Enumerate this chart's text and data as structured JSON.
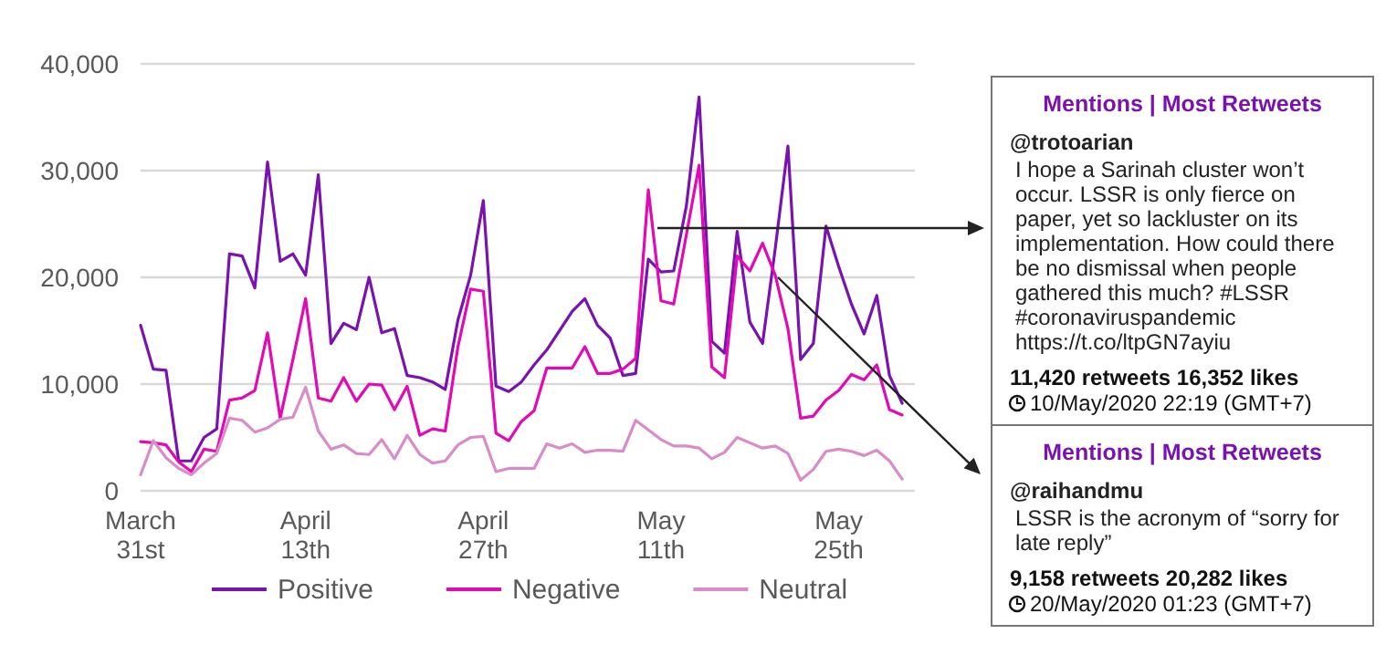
{
  "chart_data": {
    "type": "line",
    "x": [
      "2020-03-31",
      "2020-04-01",
      "2020-04-02",
      "2020-04-03",
      "2020-04-04",
      "2020-04-05",
      "2020-04-06",
      "2020-04-07",
      "2020-04-08",
      "2020-04-09",
      "2020-04-10",
      "2020-04-11",
      "2020-04-12",
      "2020-04-13",
      "2020-04-14",
      "2020-04-15",
      "2020-04-16",
      "2020-04-17",
      "2020-04-18",
      "2020-04-19",
      "2020-04-20",
      "2020-04-21",
      "2020-04-22",
      "2020-04-23",
      "2020-04-24",
      "2020-04-25",
      "2020-04-26",
      "2020-04-27",
      "2020-04-28",
      "2020-04-29",
      "2020-04-30",
      "2020-05-01",
      "2020-05-02",
      "2020-05-03",
      "2020-05-04",
      "2020-05-05",
      "2020-05-06",
      "2020-05-07",
      "2020-05-08",
      "2020-05-09",
      "2020-05-10",
      "2020-05-11",
      "2020-05-12",
      "2020-05-13",
      "2020-05-14",
      "2020-05-15",
      "2020-05-16",
      "2020-05-17",
      "2020-05-18",
      "2020-05-19",
      "2020-05-20",
      "2020-05-21",
      "2020-05-22",
      "2020-05-23",
      "2020-05-24",
      "2020-05-25",
      "2020-05-26",
      "2020-05-27",
      "2020-05-28",
      "2020-05-29",
      "2020-05-30"
    ],
    "series": [
      {
        "name": "Positive",
        "color": "#7a12b0",
        "values": [
          15500,
          11400,
          11300,
          2800,
          2800,
          5000,
          5800,
          22200,
          22000,
          19000,
          30800,
          21500,
          22200,
          20200,
          29600,
          13800,
          15700,
          15100,
          20000,
          14800,
          15200,
          10800,
          10600,
          10200,
          9500,
          16000,
          20200,
          27200,
          9800,
          9300,
          10200,
          11800,
          13200,
          15000,
          16800,
          18000,
          15500,
          14300,
          10800,
          11000,
          21700,
          20500,
          20600,
          26700,
          36900,
          14000,
          12900,
          24300,
          15800,
          13800,
          22700,
          32300,
          12300,
          13800,
          24800,
          21000,
          17500,
          14700,
          18300,
          10800,
          8200
        ]
      },
      {
        "name": "Negative",
        "color": "#e10ab4",
        "values": [
          4600,
          4500,
          4300,
          2700,
          1800,
          3900,
          3700,
          8500,
          8700,
          9400,
          14800,
          6800,
          12300,
          18000,
          8700,
          8400,
          10600,
          8400,
          10000,
          9900,
          7600,
          9800,
          5200,
          5800,
          5600,
          13500,
          18900,
          18700,
          5400,
          4700,
          6500,
          7500,
          11500,
          11500,
          11500,
          13500,
          11000,
          11000,
          11400,
          12400,
          28200,
          17800,
          17500,
          24000,
          30500,
          11600,
          10600,
          22000,
          20600,
          23200,
          20200,
          15200,
          6800,
          7000,
          8500,
          9400,
          10900,
          10400,
          11800,
          7600,
          7100
        ]
      },
      {
        "name": "Neutral",
        "color": "#d98cc8",
        "values": [
          1500,
          4700,
          3100,
          2100,
          1500,
          2600,
          3500,
          6800,
          6600,
          5500,
          5900,
          6700,
          6900,
          9700,
          5600,
          3900,
          4300,
          3500,
          3400,
          4800,
          3000,
          5200,
          3400,
          2600,
          2800,
          4300,
          5000,
          5100,
          1800,
          2100,
          2100,
          2100,
          4400,
          4000,
          4400,
          3600,
          3800,
          3800,
          3700,
          6600,
          5700,
          4800,
          4200,
          4200,
          4000,
          3000,
          3600,
          5000,
          4500,
          4000,
          4200,
          3500,
          1000,
          2000,
          3700,
          3900,
          3700,
          3300,
          3800,
          2800,
          1100
        ]
      }
    ],
    "xlim": [
      "2020-03-31",
      "2020-05-31"
    ],
    "xticks": [
      {
        "value": "2020-03-31",
        "label": "March 31st"
      },
      {
        "value": "2020-04-13",
        "label": "April 13th"
      },
      {
        "value": "2020-04-27",
        "label": "April 27th"
      },
      {
        "value": "2020-05-11",
        "label": "May 11th"
      },
      {
        "value": "2020-05-25",
        "label": "May 25th"
      }
    ],
    "ylim": [
      0,
      40000
    ],
    "yticks": [
      0,
      {
        "value": 10000,
        "label": "10,000"
      },
      {
        "value": 20000,
        "label": "20,000"
      },
      {
        "value": 30000,
        "label": "30,000"
      },
      {
        "value": 40000,
        "label": "40,000"
      }
    ],
    "grid": "y",
    "legend": "bottom",
    "line_style": "solid",
    "marker": "none",
    "annotations": [
      "Mentions | Most Retweets",
      "@trotoarian",
      "I hope a Sarinah cluster won’t occur. LSSR is only fierce on paper, yet so lackluster on its implementation. How could there be no dismissal when people gathered this much? #LSSR #coronaviruspandemic https://t.co/ltpGN7ayiu",
      "11,420 retweets 16,352 likes",
      "10/May/2020 22:19 (GMT+7)",
      "Mentions | Most Retweets",
      "@raihandmu",
      "LSSR is the acronym of “sorry for late reply”",
      "9,158 retweets 20,282 likes",
      "20/May/2020 01:23 (GMT+7)"
    ]
  }
}
